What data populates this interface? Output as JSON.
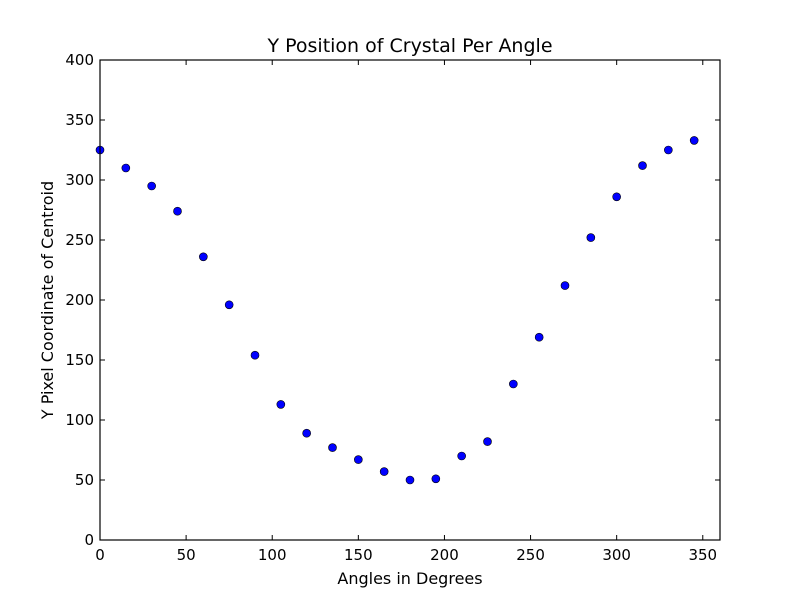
{
  "chart_data": {
    "type": "scatter",
    "title": "Y Position of Crystal Per Angle",
    "xlabel": "Angles in Degrees",
    "ylabel": "Y Pixel Coordinate of Centroid",
    "xlim": [
      0,
      360
    ],
    "ylim": [
      0,
      400
    ],
    "xticks": [
      0,
      50,
      100,
      150,
      200,
      250,
      300,
      350
    ],
    "yticks": [
      0,
      50,
      100,
      150,
      200,
      250,
      300,
      350,
      400
    ],
    "grid": false,
    "marker_color": "#0000ff",
    "x": [
      0,
      15,
      30,
      45,
      60,
      75,
      90,
      105,
      120,
      135,
      150,
      165,
      180,
      195,
      210,
      225,
      240,
      255,
      270,
      285,
      300,
      315,
      330,
      345
    ],
    "y": [
      325,
      310,
      295,
      274,
      236,
      196,
      154,
      113,
      89,
      77,
      67,
      57,
      50,
      51,
      70,
      82,
      130,
      169,
      212,
      252,
      286,
      312,
      325,
      333
    ]
  }
}
